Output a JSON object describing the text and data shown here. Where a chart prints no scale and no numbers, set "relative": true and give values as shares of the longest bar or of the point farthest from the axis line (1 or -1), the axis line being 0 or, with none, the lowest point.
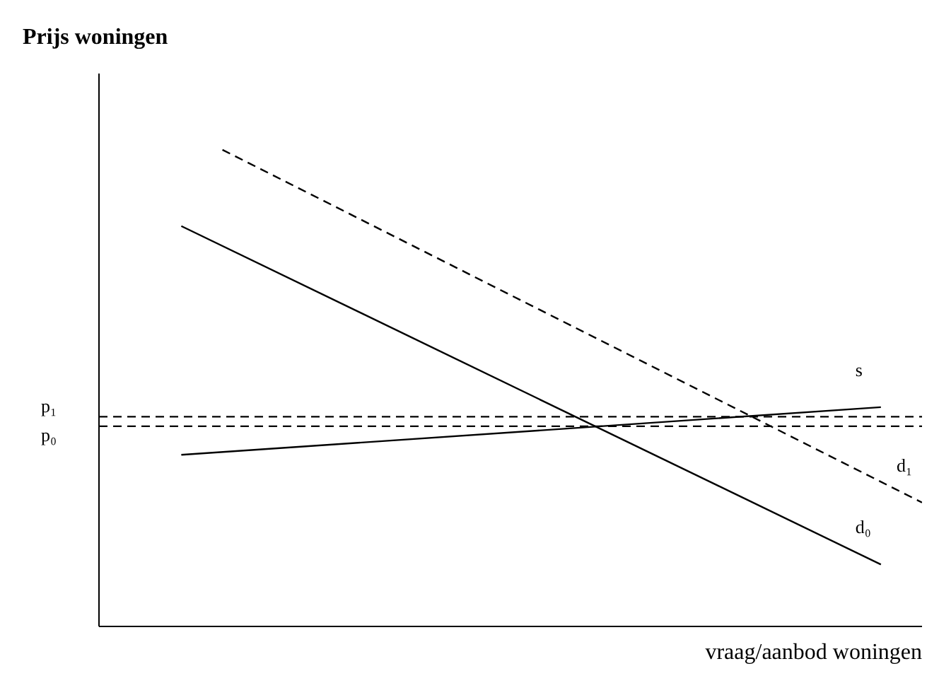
{
  "chart_data": {
    "type": "line",
    "title": "Prijs woningen",
    "xlabel": "vraag/aanbod woningen",
    "relative": true,
    "marker": "none",
    "categories": [
      null,
      null,
      null,
      null,
      null,
      null,
      null,
      null,
      null,
      null,
      null,
      null,
      null,
      null,
      null,
      null,
      null,
      null,
      null,
      null,
      null
    ],
    "series": [
      {
        "name": "d₀",
        "color": "#000000",
        "line_style": "solid",
        "values": [
          null,
          null,
          0.84,
          null,
          null,
          null,
          null,
          null,
          null,
          null,
          null,
          null,
          null,
          null,
          null,
          null,
          null,
          null,
          null,
          0.13,
          null
        ]
      },
      {
        "name": "d₁",
        "color": "#000000",
        "line_style": "dashed",
        "values": [
          null,
          null,
          null,
          1.0,
          null,
          null,
          null,
          null,
          null,
          null,
          null,
          null,
          null,
          null,
          null,
          null,
          null,
          null,
          null,
          null,
          0.26
        ]
      },
      {
        "name": "s",
        "color": "#000000",
        "line_style": "solid",
        "values": [
          null,
          null,
          0.36,
          null,
          null,
          null,
          null,
          null,
          null,
          null,
          null,
          null,
          null,
          null,
          null,
          null,
          null,
          null,
          null,
          0.46,
          null
        ]
      }
    ],
    "ref_lines": [
      {
        "axis": "y",
        "value": 0.42,
        "label": "p₀",
        "color": "#000000",
        "line_style": "dashed"
      },
      {
        "axis": "y",
        "value": 0.44,
        "label": "p₁",
        "color": "#000000",
        "line_style": "dashed"
      }
    ]
  }
}
